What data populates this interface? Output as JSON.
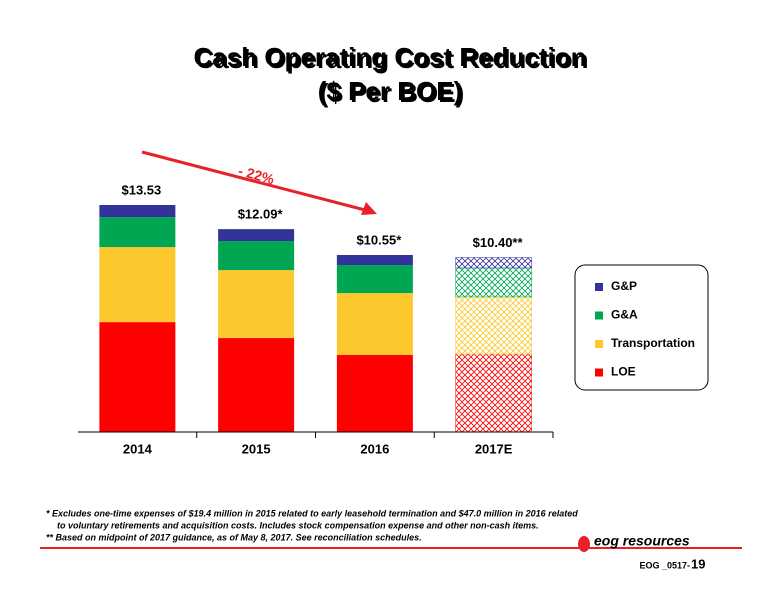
{
  "chart_data": {
    "type": "stacked-bar",
    "title": "Cash Operating Cost Reduction",
    "subtitle": "($ Per BOE)",
    "categories": [
      "2014",
      "2015",
      "2016",
      "2017E"
    ],
    "series": [
      {
        "name": "LOE",
        "color": "#ff0000",
        "values": [
          6.55,
          5.6,
          4.59,
          4.65
        ]
      },
      {
        "name": "Transportation",
        "color": "#fcc82e",
        "values": [
          4.47,
          4.05,
          3.69,
          3.4
        ]
      },
      {
        "name": "G&A",
        "color": "#00a651",
        "values": [
          1.79,
          1.73,
          1.67,
          1.73
        ]
      },
      {
        "name": "G&P",
        "color": "#333399",
        "values": [
          0.72,
          0.71,
          0.6,
          0.62
        ]
      }
    ],
    "totals": [
      13.53,
      12.09,
      10.55,
      10.4
    ],
    "total_labels": [
      "$13.53",
      "$12.09*",
      "$10.55*",
      "$10.40**"
    ],
    "hatched": [
      false,
      false,
      false,
      true
    ],
    "annotation": "- 22%",
    "annotation_color": "#e8202a",
    "legend": "right"
  },
  "footnotes": [
    "*  Excludes one-time expenses of $19.4 million in 2015 related to early leasehold termination and $47.0 million in 2016 related",
    "to voluntary retirements and acquisition costs. Includes stock compensation expense and other non-cash items.",
    "** Based on midpoint of 2017 guidance, as of May 8, 2017. See reconciliation schedules."
  ],
  "footer": {
    "logo": "eog resources",
    "code": "EOG _0517-",
    "page": "19"
  }
}
